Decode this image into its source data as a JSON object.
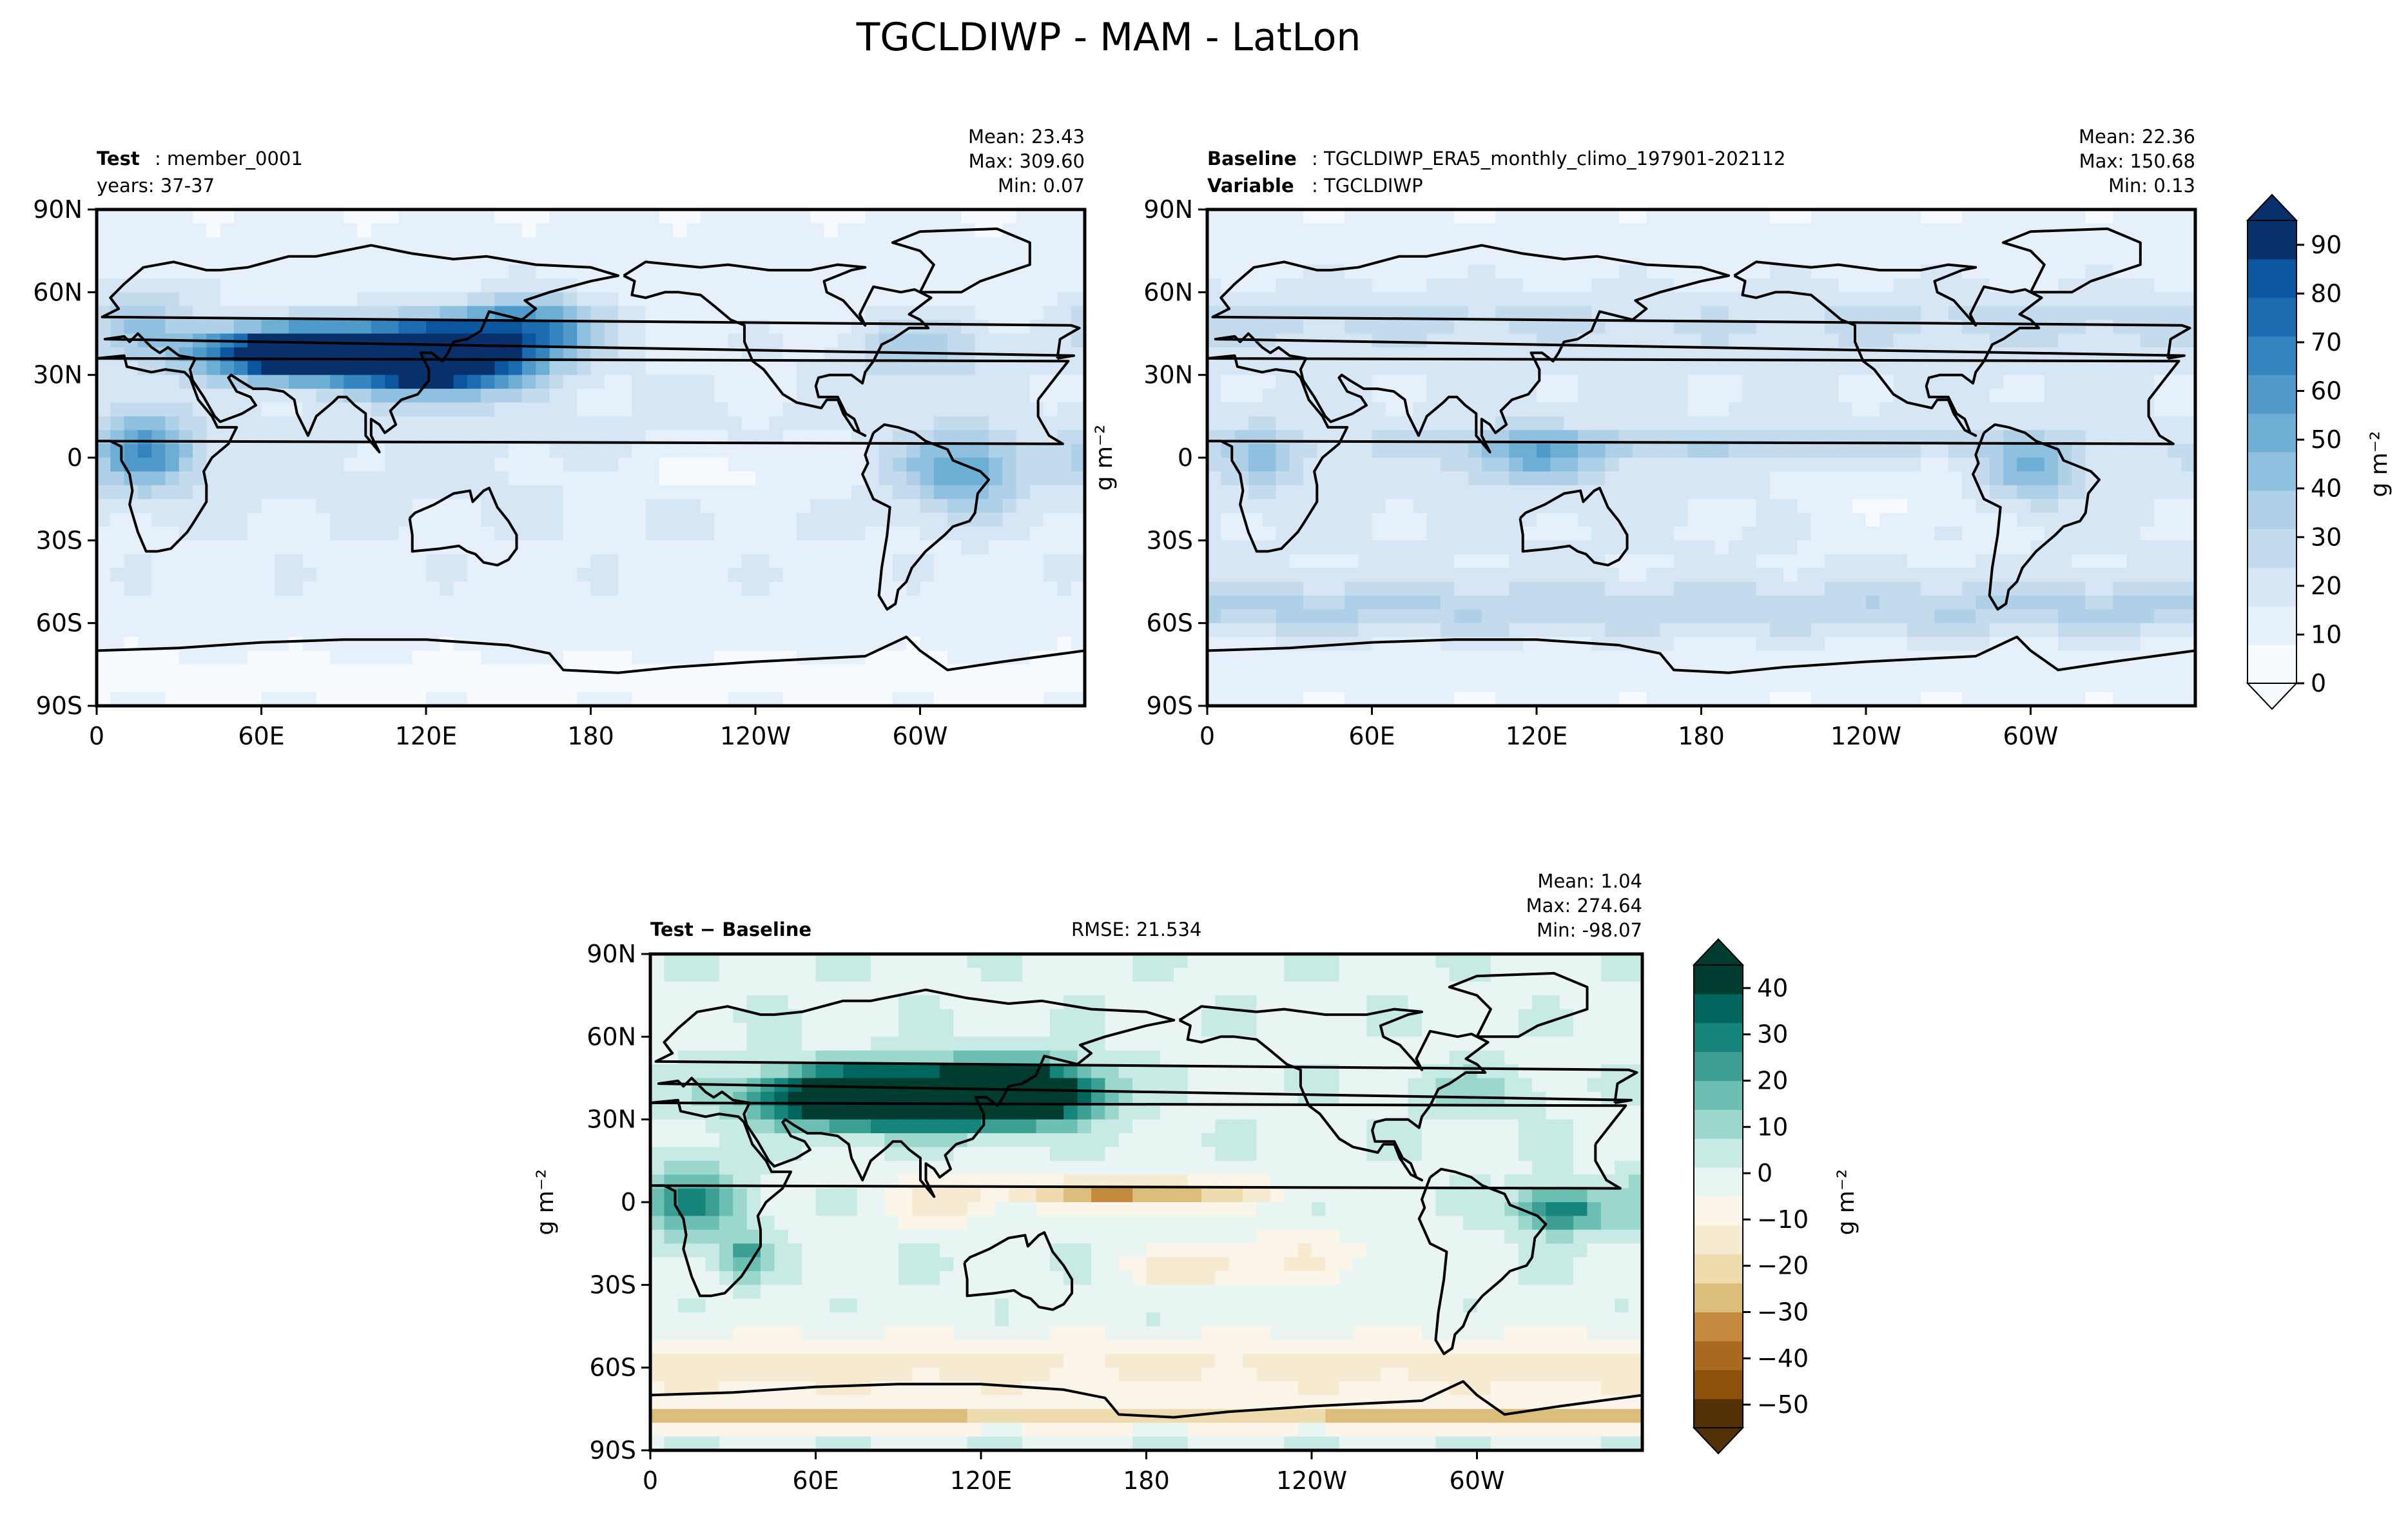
{
  "title": "TGCLDIWP - MAM - LatLon",
  "colors": {
    "seq": [
      "#f7fbff",
      "#e6f0fa",
      "#d6e6f4",
      "#c4dbee",
      "#aed1e7",
      "#8fc0df",
      "#6daed5",
      "#4f9acb",
      "#3484bf",
      "#1c6cb1",
      "#0c56a0",
      "#08306b"
    ],
    "div": [
      "#543005",
      "#8c510a",
      "#a9691f",
      "#c48b3f",
      "#dcbd7b",
      "#efdcae",
      "#f6ebd0",
      "#faf5e8",
      "#e9f5f2",
      "#c7eae4",
      "#9bd7cd",
      "#6cbfb3",
      "#3d9f93",
      "#15847a",
      "#01665e",
      "#003c30"
    ],
    "coast": "#000000"
  },
  "chart_data": [
    {
      "id": "test",
      "type": "heatmap",
      "subtitle_bold": "Test",
      "subtitle_text": ": member_0001",
      "subtitle_line2": "years: 37-37",
      "stats": [
        "Mean: 23.43",
        "Max: 309.60",
        "Min:  0.07"
      ],
      "xticks": [
        "0",
        "60E",
        "120E",
        "180",
        "120W",
        "60W"
      ],
      "yticks": [
        "90N",
        "60N",
        "30N",
        "0",
        "30S",
        "60S",
        "90S"
      ],
      "xlim": [
        0,
        360
      ],
      "ylim": [
        -90,
        90
      ],
      "units": "g m⁻²",
      "cmap": "seq",
      "vmin": 0,
      "vmax": 95,
      "base": 14,
      "blobs": [
        {
          "lon": 80,
          "lat": 38,
          "rx": 40,
          "ry": 9,
          "v": 130
        },
        {
          "lon": 125,
          "lat": 36,
          "rx": 28,
          "ry": 12,
          "v": 110
        },
        {
          "lon": 158,
          "lat": 46,
          "rx": 25,
          "ry": 12,
          "v": 55
        },
        {
          "lon": 18,
          "lat": 2,
          "rx": 18,
          "ry": 14,
          "v": 45
        },
        {
          "lon": 315,
          "lat": -5,
          "rx": 22,
          "ry": 14,
          "v": 40
        },
        {
          "lon": 15,
          "lat": 50,
          "rx": 20,
          "ry": 12,
          "v": 25
        },
        {
          "lon": 300,
          "lat": 40,
          "rx": 25,
          "ry": 12,
          "v": 22
        },
        {
          "lon": 230,
          "lat": -5,
          "rx": 45,
          "ry": 10,
          "v": -12
        },
        {
          "lon": 0,
          "lat": -80,
          "rx": 360,
          "ry": 8,
          "v": -8
        }
      ]
    },
    {
      "id": "baseline",
      "type": "heatmap",
      "subtitle_bold": "Baseline",
      "subtitle_text": ": TGCLDIWP_ERA5_monthly_climo_197901-202112",
      "subtitle_bold2": "Variable",
      "subtitle_text2": ": TGCLDIWP",
      "stats": [
        "Mean: 22.36",
        "Max: 150.68",
        "Min:  0.13"
      ],
      "xticks": [
        "0",
        "60E",
        "120E",
        "180",
        "120W",
        "60W"
      ],
      "yticks": [
        "90N",
        "60N",
        "30N",
        "0",
        "30S",
        "60S",
        "90S"
      ],
      "xlim": [
        0,
        360
      ],
      "ylim": [
        -90,
        90
      ],
      "units": "g m⁻²",
      "cmap": "seq",
      "vmin": 0,
      "vmax": 95,
      "base": 15,
      "blobs": [
        {
          "lon": 0,
          "lat": -55,
          "rx": 360,
          "ry": 10,
          "v": 20
        },
        {
          "lon": 0,
          "lat": 50,
          "rx": 360,
          "ry": 12,
          "v": 12
        },
        {
          "lon": 180,
          "lat": 5,
          "rx": 120,
          "ry": 5,
          "v": 14
        },
        {
          "lon": 120,
          "lat": 0,
          "rx": 25,
          "ry": 10,
          "v": 28
        },
        {
          "lon": 300,
          "lat": -5,
          "rx": 18,
          "ry": 12,
          "v": 30
        },
        {
          "lon": 20,
          "lat": 0,
          "rx": 15,
          "ry": 12,
          "v": 20
        },
        {
          "lon": 250,
          "lat": -15,
          "rx": 40,
          "ry": 12,
          "v": -10
        }
      ]
    },
    {
      "id": "diff",
      "type": "heatmap",
      "subtitle_bold": "Test − Baseline",
      "rmse": "RMSE: 21.534",
      "stats": [
        "Mean:  1.04",
        "Max: 274.64",
        "Min: -98.07"
      ],
      "xticks": [
        "0",
        "60E",
        "120E",
        "180",
        "120W",
        "60W"
      ],
      "yticks": [
        "90N",
        "60N",
        "30N",
        "0",
        "30S",
        "60S",
        "90S"
      ],
      "xlim": [
        0,
        360
      ],
      "ylim": [
        -90,
        90
      ],
      "units": "g m⁻²",
      "cmap": "div",
      "vmin": -55,
      "vmax": 45,
      "base": 0,
      "blobs": [
        {
          "lon": 90,
          "lat": 38,
          "rx": 45,
          "ry": 10,
          "v": 90
        },
        {
          "lon": 135,
          "lat": 40,
          "rx": 25,
          "ry": 10,
          "v": 60
        },
        {
          "lon": 15,
          "lat": 0,
          "rx": 18,
          "ry": 14,
          "v": 25
        },
        {
          "lon": 330,
          "lat": -3,
          "rx": 15,
          "ry": 8,
          "v": 35
        },
        {
          "lon": 35,
          "lat": -20,
          "rx": 10,
          "ry": 8,
          "v": 20
        },
        {
          "lon": 175,
          "lat": 3,
          "rx": 45,
          "ry": 5,
          "v": -32
        },
        {
          "lon": 0,
          "lat": -60,
          "rx": 360,
          "ry": 12,
          "v": -15
        },
        {
          "lon": 0,
          "lat": -78,
          "rx": 360,
          "ry": 4,
          "v": -25
        },
        {
          "lon": 105,
          "lat": 0,
          "rx": 20,
          "ry": 10,
          "v": -12
        },
        {
          "lon": 230,
          "lat": -20,
          "rx": 40,
          "ry": 10,
          "v": -10
        },
        {
          "lon": 300,
          "lat": 40,
          "rx": 20,
          "ry": 8,
          "v": 12
        },
        {
          "lon": 195,
          "lat": -25,
          "rx": 20,
          "ry": 6,
          "v": -14
        }
      ]
    }
  ],
  "colorbars": [
    {
      "id": "seq",
      "label": "g m⁻²",
      "ticks": [
        "0",
        "10",
        "20",
        "30",
        "40",
        "50",
        "60",
        "70",
        "80",
        "90"
      ],
      "min": 0,
      "max": 95,
      "values": [
        0,
        10,
        20,
        30,
        40,
        50,
        60,
        70,
        80,
        90
      ]
    },
    {
      "id": "div",
      "label": "g m⁻²",
      "ticks": [
        "40",
        "30",
        "20",
        "10",
        "0",
        "−10",
        "−20",
        "−30",
        "−40",
        "−50"
      ],
      "min": -55,
      "max": 45,
      "values": [
        40,
        30,
        20,
        10,
        0,
        -10,
        -20,
        -30,
        -40,
        -50
      ]
    }
  ],
  "ylabel_units": "g m⁻²"
}
